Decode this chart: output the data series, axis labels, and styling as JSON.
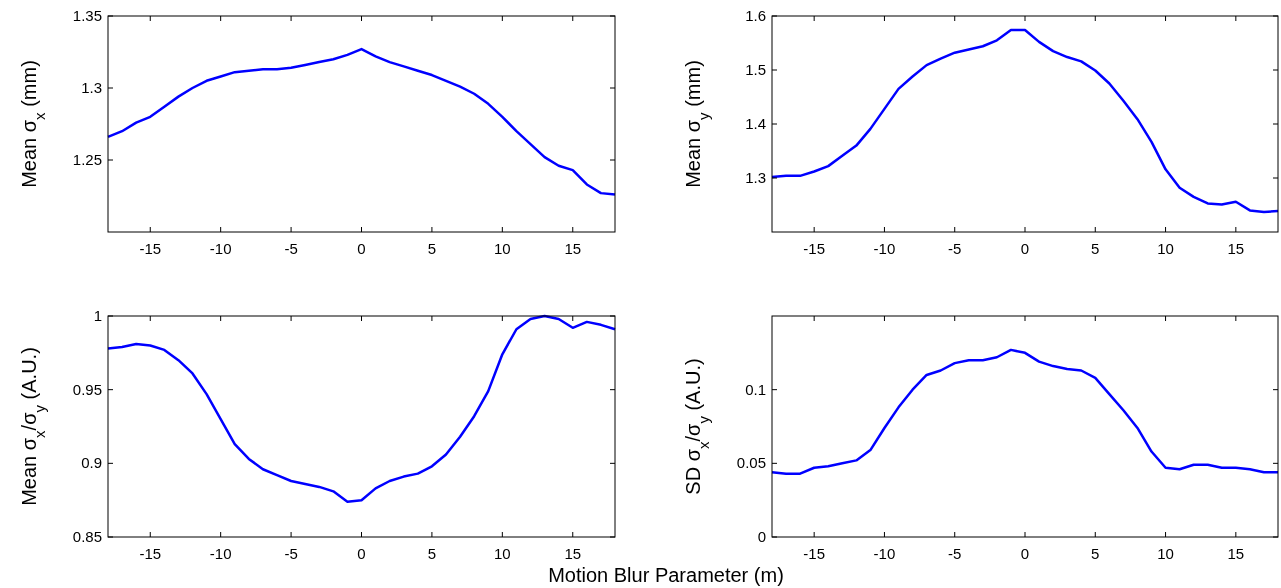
{
  "chart_data": [
    {
      "type": "line",
      "ylabel": "Mean σ$_{x}$ (mm)",
      "xlim": [
        -18,
        18
      ],
      "xticks": [
        -15,
        -10,
        -5,
        0,
        5,
        10,
        15
      ],
      "ylim": [
        1.2,
        1.35
      ],
      "yticks": [
        1.25,
        1.3,
        1.35
      ],
      "x": [
        -18,
        -17,
        -16,
        -15,
        -14,
        -13,
        -12,
        -11,
        -10,
        -9,
        -8,
        -7,
        -6,
        -5,
        -4,
        -3,
        -2,
        -1,
        0,
        1,
        2,
        3,
        4,
        5,
        6,
        7,
        8,
        9,
        10,
        11,
        12,
        13,
        14,
        15,
        16,
        17,
        18
      ],
      "series": [
        {
          "color": "#0000ff",
          "values": [
            1.266,
            1.27,
            1.276,
            1.28,
            1.287,
            1.294,
            1.3,
            1.305,
            1.308,
            1.311,
            1.312,
            1.313,
            1.313,
            1.314,
            1.316,
            1.318,
            1.32,
            1.323,
            1.327,
            1.322,
            1.318,
            1.315,
            1.312,
            1.309,
            1.305,
            1.301,
            1.296,
            1.289,
            1.28,
            1.27,
            1.261,
            1.252,
            1.246,
            1.243,
            1.233,
            1.227,
            1.226
          ]
        }
      ]
    },
    {
      "type": "line",
      "ylabel": "Mean σ$_{y}$ (mm)",
      "xlim": [
        -18,
        18
      ],
      "xticks": [
        -15,
        -10,
        -5,
        0,
        5,
        10,
        15
      ],
      "ylim": [
        1.2,
        1.6
      ],
      "yticks": [
        1.3,
        1.4,
        1.5,
        1.6
      ],
      "x": [
        -18,
        -17,
        -16,
        -15,
        -14,
        -13,
        -12,
        -11,
        -10,
        -9,
        -8,
        -7,
        -6,
        -5,
        -4,
        -3,
        -2,
        -1,
        0,
        1,
        2,
        3,
        4,
        5,
        6,
        7,
        8,
        9,
        10,
        11,
        12,
        13,
        14,
        15,
        16,
        17,
        18
      ],
      "series": [
        {
          "color": "#0000ff",
          "values": [
            1.302,
            1.304,
            1.304,
            1.312,
            1.322,
            1.341,
            1.36,
            1.391,
            1.428,
            1.465,
            1.488,
            1.509,
            1.521,
            1.532,
            1.538,
            1.544,
            1.555,
            1.574,
            1.574,
            1.552,
            1.535,
            1.524,
            1.516,
            1.499,
            1.475,
            1.443,
            1.409,
            1.367,
            1.316,
            1.282,
            1.265,
            1.253,
            1.251,
            1.256,
            1.24,
            1.237,
            1.239
          ]
        }
      ]
    },
    {
      "type": "line",
      "ylabel": "Mean σ$_{x}$/σ$_{y}$ (A.U.)",
      "xlabel": "Motion Blur Parameter (m)",
      "xlim": [
        -18,
        18
      ],
      "xticks": [
        -15,
        -10,
        -5,
        0,
        5,
        10,
        15
      ],
      "ylim": [
        0.85,
        1
      ],
      "yticks": [
        0.85,
        0.9,
        0.95,
        1
      ],
      "x": [
        -18,
        -17,
        -16,
        -15,
        -14,
        -13,
        -12,
        -11,
        -10,
        -9,
        -8,
        -7,
        -6,
        -5,
        -4,
        -3,
        -2,
        -1,
        0,
        1,
        2,
        3,
        4,
        5,
        6,
        7,
        8,
        9,
        10,
        11,
        12,
        13,
        14,
        15,
        16,
        17,
        18
      ],
      "series": [
        {
          "color": "#0000ff",
          "values": [
            0.978,
            0.979,
            0.981,
            0.98,
            0.977,
            0.97,
            0.961,
            0.947,
            0.93,
            0.913,
            0.903,
            0.896,
            0.892,
            0.888,
            0.886,
            0.884,
            0.881,
            0.874,
            0.875,
            0.883,
            0.888,
            0.891,
            0.893,
            0.898,
            0.906,
            0.918,
            0.932,
            0.949,
            0.974,
            0.991,
            0.998,
            1.0,
            0.998,
            0.992,
            0.996,
            0.994,
            0.991
          ]
        }
      ]
    },
    {
      "type": "line",
      "ylabel": "SD σ$_{x}$/σ$_{y}$ (A.U.)",
      "xlim": [
        -18,
        18
      ],
      "xticks": [
        -15,
        -10,
        -5,
        0,
        5,
        10,
        15
      ],
      "ylim": [
        0,
        0.15
      ],
      "yticks": [
        0,
        0.05,
        0.1
      ],
      "x": [
        -18,
        -17,
        -16,
        -15,
        -14,
        -13,
        -12,
        -11,
        -10,
        -9,
        -8,
        -7,
        -6,
        -5,
        -4,
        -3,
        -2,
        -1,
        0,
        1,
        2,
        3,
        4,
        5,
        6,
        7,
        8,
        9,
        10,
        11,
        12,
        13,
        14,
        15,
        16,
        17,
        18
      ],
      "series": [
        {
          "color": "#0000ff",
          "values": [
            0.044,
            0.043,
            0.043,
            0.047,
            0.048,
            0.05,
            0.052,
            0.059,
            0.074,
            0.088,
            0.1,
            0.11,
            0.113,
            0.118,
            0.12,
            0.12,
            0.122,
            0.127,
            0.125,
            0.119,
            0.116,
            0.114,
            0.113,
            0.108,
            0.097,
            0.086,
            0.074,
            0.058,
            0.047,
            0.046,
            0.049,
            0.049,
            0.047,
            0.047,
            0.046,
            0.044,
            0.044
          ]
        }
      ]
    }
  ]
}
